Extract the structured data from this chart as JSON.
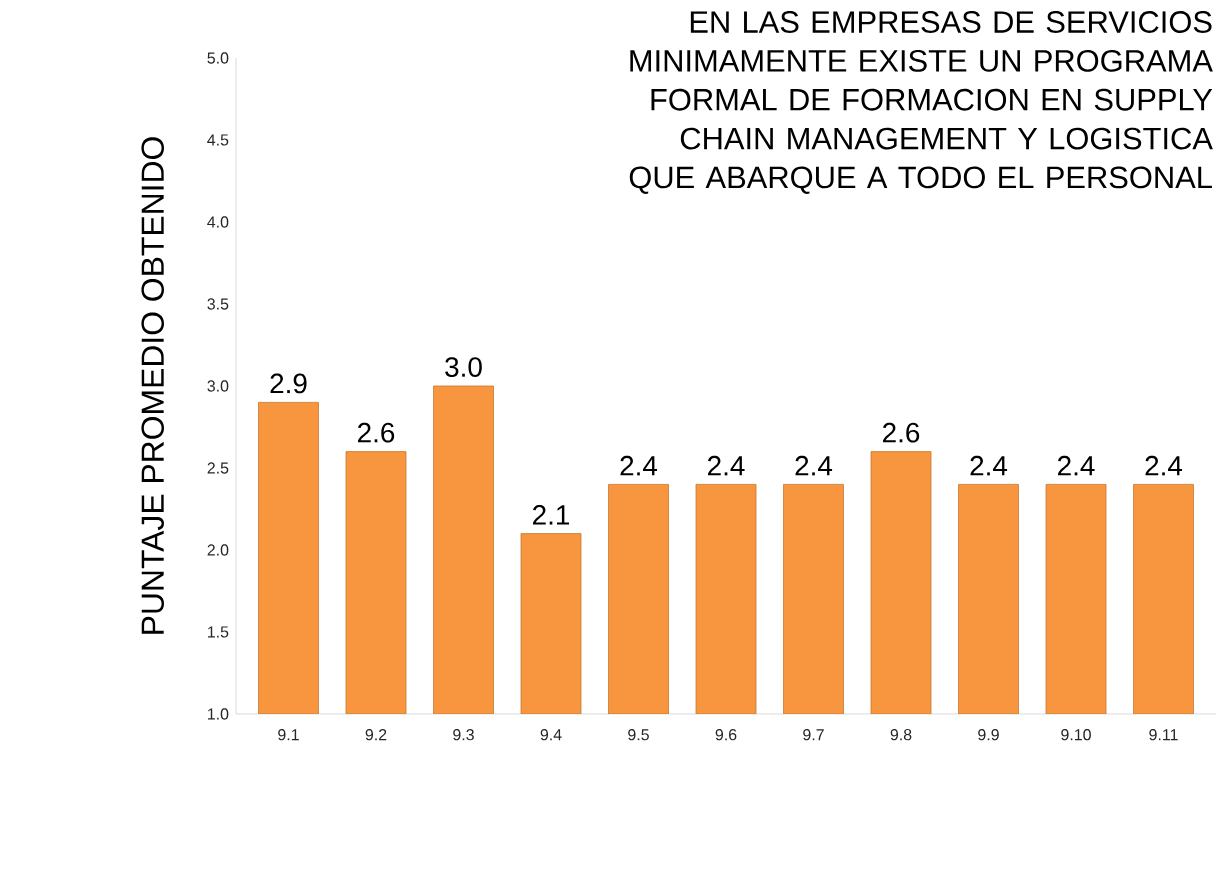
{
  "chart_data": {
    "type": "bar",
    "title": "EN LAS EMPRESAS DE SERVICIOS MINIMAMENTE EXISTE UN PROGRAMA FORMAL DE FORMACION EN SUPPLY CHAIN MANAGEMENT Y LOGISTICA QUE ABARQUE A TODO EL PERSONAL",
    "ylabel": "PUNTAJE PROMEDIO OBTENIDO",
    "categories": [
      "9.1",
      "9.2",
      "9.3",
      "9.4",
      "9.5",
      "9.6",
      "9.7",
      "9.8",
      "9.9",
      "9.10",
      "9.11"
    ],
    "values": [
      2.9,
      2.6,
      3.0,
      2.1,
      2.4,
      2.4,
      2.4,
      2.6,
      2.4,
      2.4,
      2.4
    ],
    "value_labels": [
      "2.9",
      "2.6",
      "3.0",
      "2.1",
      "2.4",
      "2.4",
      "2.4",
      "2.6",
      "2.4",
      "2.4",
      "2.4"
    ],
    "color": "#f7963f",
    "ylim": [
      1,
      5
    ],
    "yticks": [
      {
        "value": 1,
        "label": "1.0"
      },
      {
        "value": 1.5,
        "label": "1.5"
      },
      {
        "value": 2,
        "label": "2.0"
      },
      {
        "value": 2.5,
        "label": "2.5"
      },
      {
        "value": 3,
        "label": "3.0"
      },
      {
        "value": 3.5,
        "label": "3.5"
      },
      {
        "value": 4,
        "label": "4.0"
      },
      {
        "value": 4.5,
        "label": "4.5"
      },
      {
        "value": 5,
        "label": "5.0"
      }
    ]
  }
}
